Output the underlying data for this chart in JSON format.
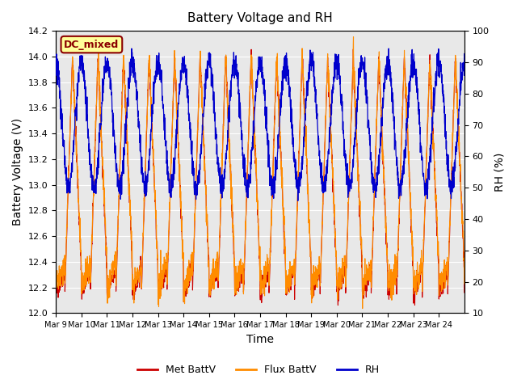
{
  "title": "Battery Voltage and RH",
  "xlabel": "Time",
  "ylabel_left": "Battery Voltage (V)",
  "ylabel_right": "RH (%)",
  "annotation_text": "DC_mixed",
  "ylim_left": [
    12.0,
    14.2
  ],
  "ylim_right": [
    10,
    100
  ],
  "yticks_left": [
    12.0,
    12.2,
    12.4,
    12.6,
    12.8,
    13.0,
    13.2,
    13.4,
    13.6,
    13.8,
    14.0,
    14.2
  ],
  "yticks_right": [
    10,
    20,
    30,
    40,
    50,
    60,
    70,
    80,
    90,
    100
  ],
  "xtick_labels": [
    "Mar 9",
    "Mar 10",
    "Mar 11",
    "Mar 12",
    "Mar 13",
    "Mar 14",
    "Mar 15",
    "Mar 16",
    "Mar 17",
    "Mar 18",
    "Mar 19",
    "Mar 20",
    "Mar 21",
    "Mar 22",
    "Mar 23",
    "Mar 24"
  ],
  "colors": {
    "met_battv": "#CC0000",
    "flux_battv": "#FF8C00",
    "rh": "#0000CC",
    "background": "#E8E8E8",
    "annotation_bg": "#FFFF99",
    "annotation_border": "#8B0000",
    "annotation_text": "#8B0000"
  },
  "legend_labels": [
    "Met BattV",
    "Flux BattV",
    "RH"
  ],
  "num_days": 16,
  "day_start": 9,
  "seed": 42
}
